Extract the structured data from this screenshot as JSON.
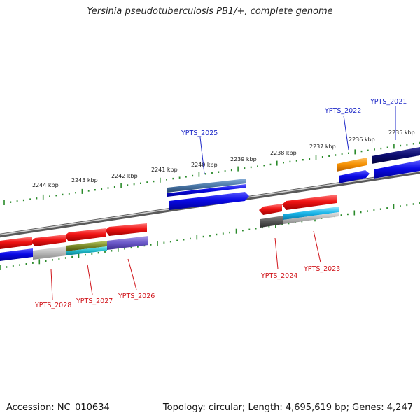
{
  "title": "Yersinia pseudotuberculosis PB1/+, complete genome",
  "footer": {
    "accession": "Accession: NC_010634",
    "summary": "Topology: circular; Length: 4,695,619 bp; Genes: 4,247"
  },
  "colors": {
    "forward_gene": "#0f0fd2",
    "reverse_gene": "#e61414",
    "backbone": "#8a8a8a",
    "ticks": "#2a8a2a",
    "label_forward": "#1d28c8",
    "label_reverse": "#d0141a"
  },
  "scale_labels": [
    "2244 kbp",
    "2243 kbp",
    "2242 kbp",
    "2241 kbp",
    "2240 kbp",
    "2239 kbp",
    "2238 kbp",
    "2237 kbp",
    "2236 kbp",
    "2235 kbp"
  ],
  "genes": [
    {
      "id": "YPTS_2021",
      "strand": "+"
    },
    {
      "id": "YPTS_2022",
      "strand": "+"
    },
    {
      "id": "YPTS_2023",
      "strand": "-"
    },
    {
      "id": "YPTS_2024",
      "strand": "-"
    },
    {
      "id": "YPTS_2025",
      "strand": "+"
    },
    {
      "id": "YPTS_2026",
      "strand": "-"
    },
    {
      "id": "YPTS_2027",
      "strand": "-"
    },
    {
      "id": "YPTS_2028",
      "strand": "-"
    }
  ]
}
